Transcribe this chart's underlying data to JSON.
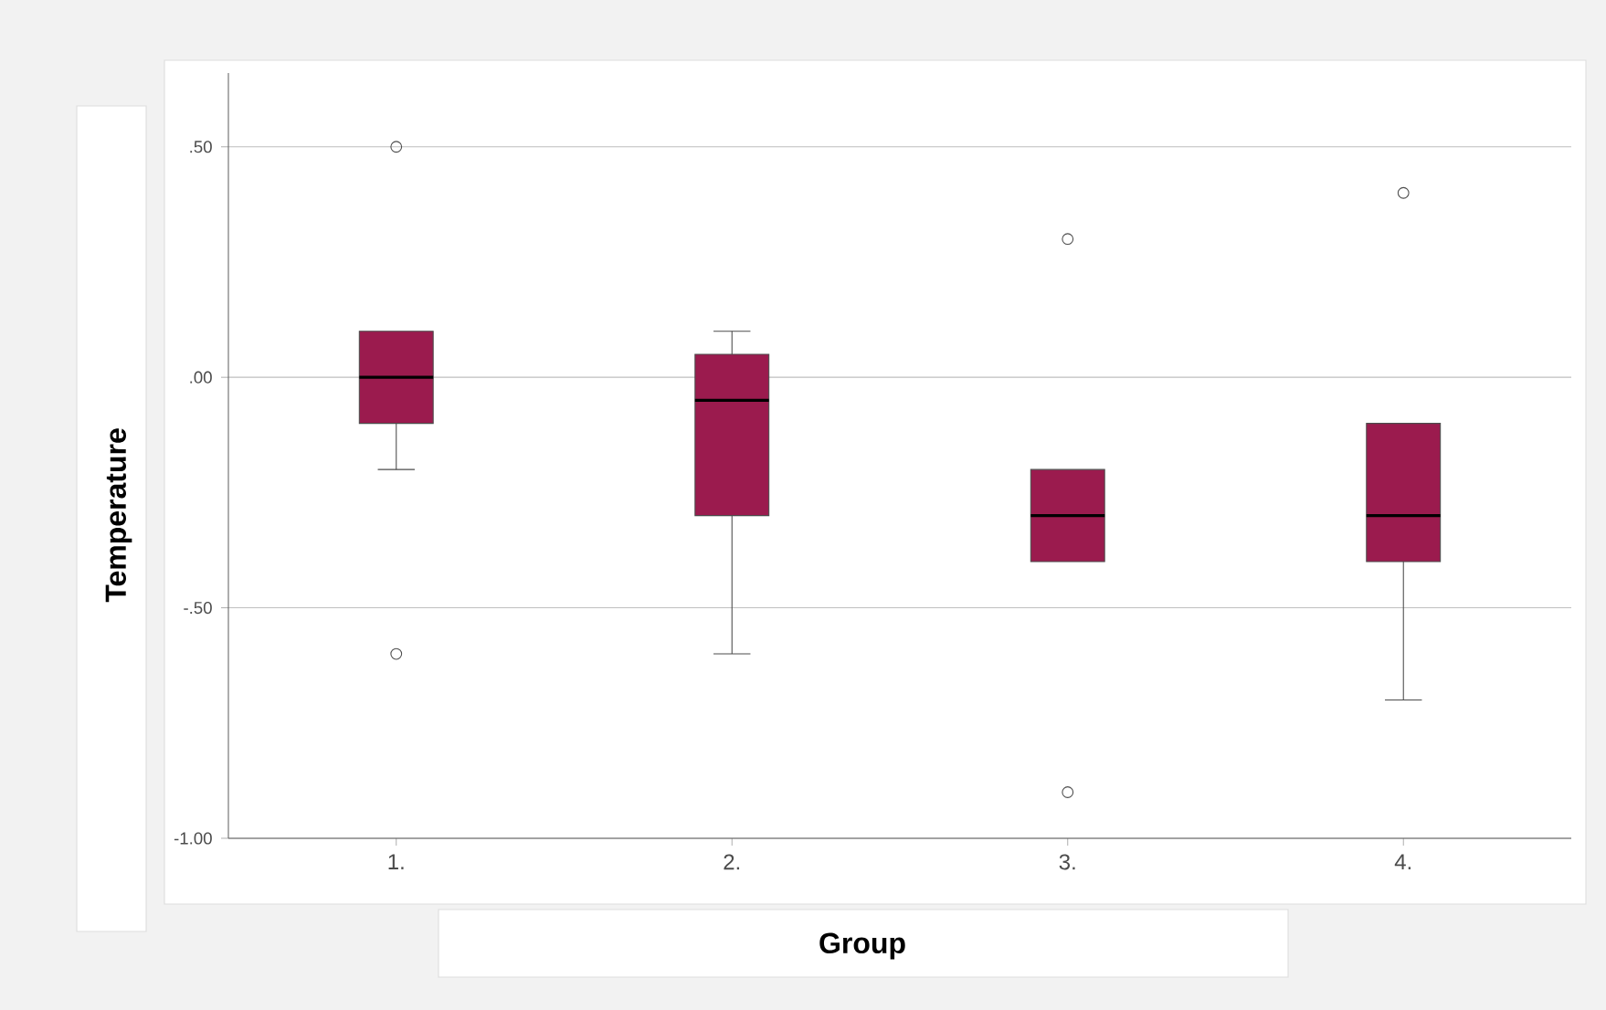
{
  "chart_data": {
    "type": "box",
    "xlabel": "Group",
    "ylabel": "Temperature",
    "categories": [
      "1.",
      "2.",
      "3.",
      "4."
    ],
    "color": "#9b1b4e",
    "boxes": [
      {
        "low": -0.2,
        "q1": -0.1,
        "median": 0.0,
        "q3": 0.1,
        "high": 0.1,
        "outliers": [
          0.5,
          -0.6
        ]
      },
      {
        "low": -0.6,
        "q1": -0.3,
        "median": -0.05,
        "q3": 0.05,
        "high": 0.1
      },
      {
        "low": -0.4,
        "q1": -0.4,
        "median": -0.3,
        "q3": -0.2,
        "high": -0.2,
        "outliers": [
          0.3,
          -0.9
        ]
      },
      {
        "low": -0.7,
        "q1": -0.4,
        "median": -0.3,
        "q3": -0.1,
        "high": -0.1,
        "outliers": [
          0.4
        ]
      }
    ],
    "ylim": [
      -1.0,
      0.66
    ],
    "yticks": [
      {
        "value": -1.0,
        "label": "-1.00"
      },
      {
        "value": -0.5,
        "label": "-.50"
      },
      {
        "value": 0.0,
        "label": ".00"
      },
      {
        "value": 0.5,
        "label": ".50"
      }
    ],
    "grid": "y"
  }
}
